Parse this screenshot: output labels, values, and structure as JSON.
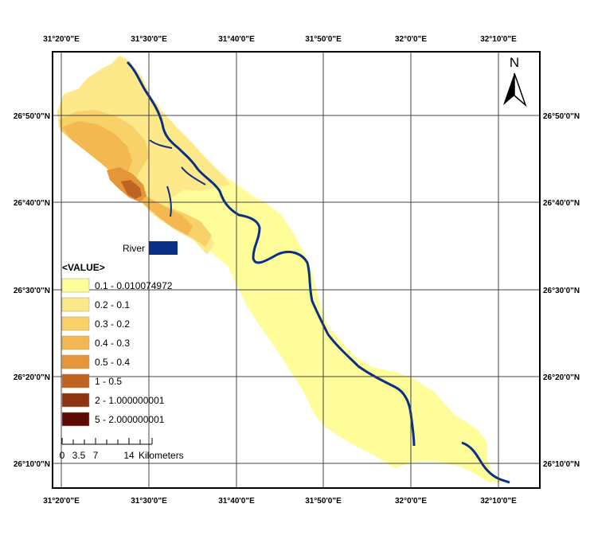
{
  "map": {
    "top_lon_labels": [
      "31°20'0\"E",
      "31°30'0\"E",
      "31°40'0\"E",
      "31°50'0\"E",
      "32°0'0\"E",
      "32°10'0\"E"
    ],
    "bottom_lon_labels": [
      "31°20'0\"E",
      "31°30'0\"E",
      "31°40'0\"E",
      "31°50'0\"E",
      "32°0'0\"E",
      "32°10'0\"E"
    ],
    "left_lat_labels": [
      "26°50'0\"N",
      "26°40'0\"N",
      "26°30'0\"N",
      "26°20'0\"N",
      "26°10'0\"N"
    ],
    "right_lat_labels": [
      "26°50'0\"N",
      "26°40'0\"N",
      "26°30'0\"N",
      "26°20'0\"N",
      "26°10'0\"N"
    ],
    "north_arrow": {
      "label": "N",
      "icon": "north-arrow-icon"
    }
  },
  "legend": {
    "river_label": "River",
    "river_color": "#0a2f86",
    "title": "<VALUE>",
    "classes": [
      {
        "label": "0.1 - 0.010074972",
        "color": "#fffd9a"
      },
      {
        "label": "0.2 - 0.1",
        "color": "#fde98a"
      },
      {
        "label": "0.3 - 0.2",
        "color": "#f8d269"
      },
      {
        "label": "0.4 - 0.3",
        "color": "#f3b84f"
      },
      {
        "label": "0.5 - 0.4",
        "color": "#e49638"
      },
      {
        "label": "1 - 0.5",
        "color": "#bd6423"
      },
      {
        "label": "2 - 1.000000001",
        "color": "#8f3412"
      },
      {
        "label": "5 - 2.000000001",
        "color": "#5c0a04"
      }
    ]
  },
  "scale_bar": {
    "ticks": [
      "0",
      "3.5",
      "7",
      "14"
    ],
    "unit": "Kilometers"
  }
}
